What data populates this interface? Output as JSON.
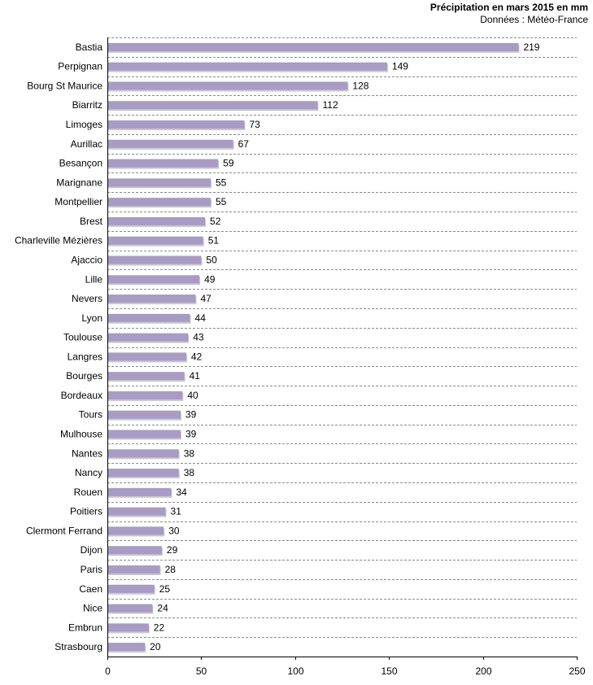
{
  "chart_data": {
    "type": "bar",
    "orientation": "horizontal",
    "title": "Précipitation en mars 2015 en mm",
    "subtitle": "Données : Météo-France",
    "xlabel": "",
    "ylabel": "",
    "xlim": [
      0,
      250
    ],
    "xticks": [
      "0",
      "50",
      "100",
      "150",
      "200",
      "250"
    ],
    "grid": "horizontal dashed",
    "bar_color": "#a89bc4",
    "bar_shadow_color": "#c9c9c9",
    "categories": [
      "Bastia",
      "Perpignan",
      "Bourg St Maurice",
      "Biarritz",
      "Limoges",
      "Aurillac",
      "Besançon",
      "Marignane",
      "Montpellier",
      "Brest",
      "Charleville Mézières",
      "Ajaccio",
      "Lille",
      "Nevers",
      "Lyon",
      "Toulouse",
      "Langres",
      "Bourges",
      "Bordeaux",
      "Tours",
      "Mulhouse",
      "Nantes",
      "Nancy",
      "Rouen",
      "Poitiers",
      "Clermont Ferrand",
      "Dijon",
      "Paris",
      "Caen",
      "Nice",
      "Embrun",
      "Strasbourg"
    ],
    "values": [
      219,
      149,
      128,
      112,
      73,
      67,
      59,
      55,
      55,
      52,
      51,
      50,
      49,
      47,
      44,
      43,
      42,
      41,
      40,
      39,
      39,
      38,
      38,
      34,
      31,
      30,
      29,
      28,
      25,
      24,
      22,
      20
    ]
  }
}
